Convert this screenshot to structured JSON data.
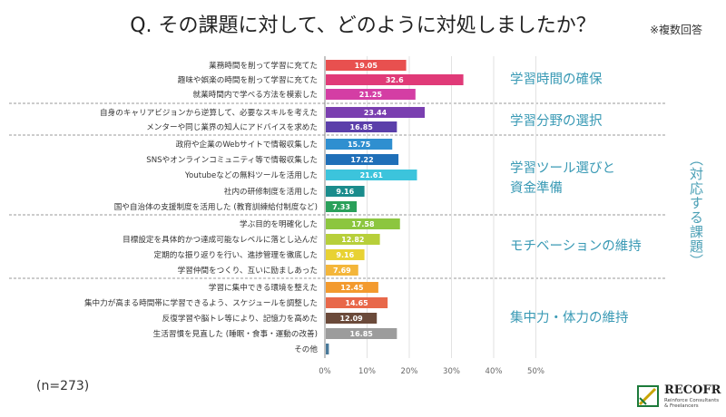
{
  "title": "Q. その課題に対して、どのように対処しましたか？",
  "note": "※複数回答",
  "side_label": "（対応する課題）",
  "sample_note": "(n=273)",
  "logo": {
    "name": "RECOFR",
    "tagline": "Reinforce Consultants & Freelancers"
  },
  "chart_data": {
    "type": "bar",
    "orientation": "horizontal",
    "title": "Q. その課題に対して、どのように対処しましたか？",
    "xlim": [
      0,
      50
    ],
    "xticks": [
      "0%",
      "10%",
      "20%",
      "30%",
      "40%",
      "50%"
    ],
    "groups": [
      {
        "name": "学習時間の確保",
        "items": [
          {
            "label": "業務時間を削って学習に充てた",
            "value": 19.05,
            "value_label": "19.05",
            "color": "#e8504f"
          },
          {
            "label": "趣味や娯楽の時間を削って学習に充てた",
            "value": 32.6,
            "value_label": "32.6",
            "color": "#e03a78"
          },
          {
            "label": "就業時間内で学べる方法を模索した",
            "value": 21.25,
            "value_label": "21.25",
            "color": "#d43ea4"
          }
        ]
      },
      {
        "name": "学習分野の選択",
        "items": [
          {
            "label": "自身のキャリアビジョンから逆算して、必要なスキルを考えた",
            "value": 23.44,
            "value_label": "23.44",
            "color": "#7a3fb0"
          },
          {
            "label": "メンターや同じ業界の知人にアドバイスを求めた",
            "value": 16.85,
            "value_label": "16.85",
            "color": "#5b3faa"
          }
        ]
      },
      {
        "name": "学習ツール選びと資金準備",
        "items": [
          {
            "label": "政府や企業のWebサイトで情報収集した",
            "value": 15.75,
            "value_label": "15.75",
            "color": "#2f8fd0"
          },
          {
            "label": "SNSやオンラインコミュニティ等で情報収集した",
            "value": 17.22,
            "value_label": "17.22",
            "color": "#1f6fb8"
          },
          {
            "label": "Youtubeなどの無料ツールを活用した",
            "value": 21.61,
            "value_label": "21.61",
            "color": "#3cc4dc"
          },
          {
            "label": "社内の研修制度を活用した",
            "value": 9.16,
            "value_label": "9.16",
            "color": "#1a8c8c"
          },
          {
            "label": "国や自治体の支援制度を活用した (教育訓練給付制度など)",
            "value": 7.33,
            "value_label": "7.33",
            "color": "#2aa05a"
          }
        ]
      },
      {
        "name": "モチベーションの維持",
        "items": [
          {
            "label": "学ぶ目的を明確化した",
            "value": 17.58,
            "value_label": "17.58",
            "color": "#8cc63f"
          },
          {
            "label": "目標設定を具体的かつ達成可能なレベルに落とし込んだ",
            "value": 12.82,
            "value_label": "12.82",
            "color": "#b7cf3a"
          },
          {
            "label": "定期的な振り返りを行い、進捗管理を徹底した",
            "value": 9.16,
            "value_label": "9.16",
            "color": "#e8d233"
          },
          {
            "label": "学習仲間をつくり、互いに励ましあった",
            "value": 7.69,
            "value_label": "7.69",
            "color": "#f4b63a"
          }
        ]
      },
      {
        "name": "集中力・体力の維持",
        "items": [
          {
            "label": "学習に集中できる環境を整えた",
            "value": 12.45,
            "value_label": "12.45",
            "color": "#f39a2e"
          },
          {
            "label": "集中力が高まる時間帯に学習できるよう、スケジュールを調整した",
            "value": 14.65,
            "value_label": "14.65",
            "color": "#e8684a"
          },
          {
            "label": "反復学習や脳トレ等により、記憶力を高めた",
            "value": 12.09,
            "value_label": "12.09",
            "color": "#6b4a3a"
          },
          {
            "label": "生活習慣を見直した (睡眠・食事・運動の改善)",
            "value": 16.85,
            "value_label": "16.85",
            "color": "#9c9c9c"
          }
        ]
      },
      {
        "name": "",
        "items": [
          {
            "label": "その他",
            "value": 0.73,
            "value_label": "",
            "color": "#4a7a9a"
          }
        ]
      }
    ]
  }
}
